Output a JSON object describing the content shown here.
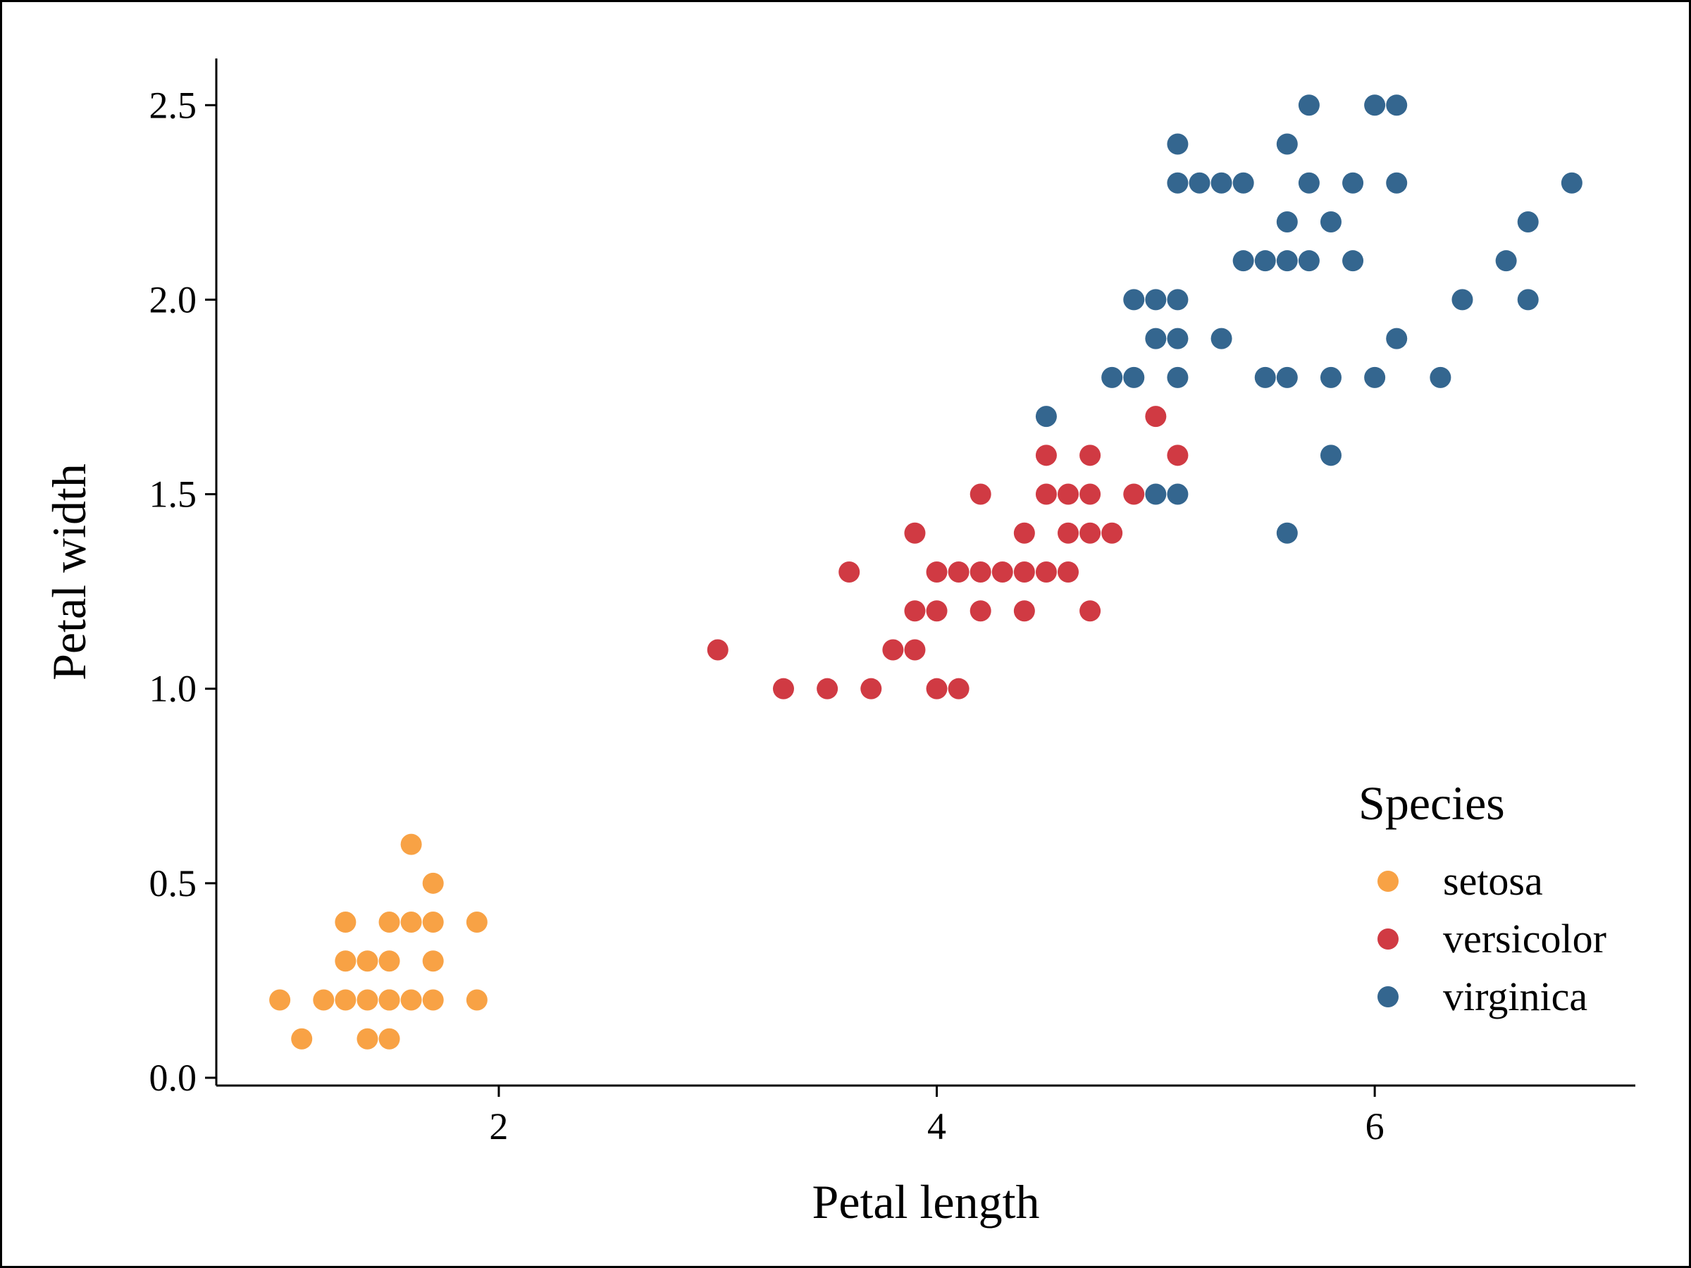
{
  "chart_data": {
    "type": "scatter",
    "xlabel": "Petal length",
    "ylabel": "Petal width",
    "xlim": [
      0.71,
      7.19
    ],
    "ylim": [
      -0.02,
      2.62
    ],
    "x_ticks": [
      2,
      4,
      6
    ],
    "x_tick_labels": [
      "2",
      "4",
      "6"
    ],
    "y_ticks": [
      0,
      0.5,
      1,
      1.5,
      2,
      2.5
    ],
    "y_tick_labels": [
      "0.0",
      "0.5",
      "1.0",
      "1.5",
      "2.0",
      "2.5"
    ],
    "grid": false,
    "legend": {
      "title": "Species",
      "placement": "bottom-right",
      "entries": [
        "setosa",
        "versicolor",
        "virginica"
      ]
    },
    "series": [
      {
        "name": "setosa",
        "color": "#F8A245",
        "x": [
          1.0,
          1.1,
          1.2,
          1.3,
          1.3,
          1.3,
          1.4,
          1.4,
          1.4,
          1.5,
          1.5,
          1.5,
          1.5,
          1.5,
          1.6,
          1.6,
          1.6,
          1.7,
          1.7,
          1.7,
          1.7,
          1.9,
          1.9
        ],
        "y": [
          0.2,
          0.1,
          0.2,
          0.2,
          0.3,
          0.4,
          0.1,
          0.2,
          0.3,
          0.1,
          0.2,
          0.3,
          0.4,
          0.2,
          0.2,
          0.4,
          0.6,
          0.2,
          0.3,
          0.4,
          0.5,
          0.2,
          0.4
        ]
      },
      {
        "name": "versicolor",
        "color": "#D03A43",
        "x": [
          3.0,
          3.3,
          3.5,
          3.6,
          3.7,
          3.8,
          3.9,
          3.9,
          3.9,
          4.0,
          4.0,
          4.0,
          4.1,
          4.1,
          4.2,
          4.2,
          4.2,
          4.3,
          4.4,
          4.4,
          4.4,
          4.5,
          4.5,
          4.5,
          4.6,
          4.6,
          4.6,
          4.7,
          4.7,
          4.7,
          4.7,
          4.8,
          4.9,
          5.0,
          5.1
        ],
        "y": [
          1.1,
          1.0,
          1.0,
          1.3,
          1.0,
          1.1,
          1.1,
          1.2,
          1.4,
          1.0,
          1.2,
          1.3,
          1.0,
          1.3,
          1.2,
          1.3,
          1.5,
          1.3,
          1.2,
          1.3,
          1.4,
          1.3,
          1.5,
          1.6,
          1.3,
          1.4,
          1.5,
          1.2,
          1.4,
          1.5,
          1.6,
          1.4,
          1.5,
          1.7,
          1.6
        ]
      },
      {
        "name": "virginica",
        "color": "#34668F",
        "x": [
          4.5,
          4.8,
          4.9,
          4.9,
          5.0,
          5.0,
          5.0,
          5.1,
          5.1,
          5.1,
          5.1,
          5.1,
          5.1,
          5.2,
          5.3,
          5.3,
          5.4,
          5.4,
          5.5,
          5.5,
          5.6,
          5.6,
          5.6,
          5.6,
          5.6,
          5.7,
          5.7,
          5.7,
          5.8,
          5.8,
          5.8,
          5.9,
          5.9,
          6.0,
          6.0,
          6.1,
          6.1,
          6.1,
          6.3,
          6.4,
          6.6,
          6.7,
          6.7,
          6.9
        ],
        "y": [
          1.7,
          1.8,
          1.8,
          2.0,
          1.5,
          1.9,
          2.0,
          1.5,
          1.8,
          1.9,
          2.0,
          2.3,
          2.4,
          2.3,
          1.9,
          2.3,
          2.1,
          2.3,
          1.8,
          2.1,
          1.4,
          1.8,
          2.1,
          2.2,
          2.4,
          2.1,
          2.3,
          2.5,
          1.6,
          1.8,
          2.2,
          2.1,
          2.3,
          1.8,
          2.5,
          1.9,
          2.3,
          2.5,
          1.8,
          2.0,
          2.1,
          2.0,
          2.2,
          2.3
        ]
      }
    ]
  }
}
